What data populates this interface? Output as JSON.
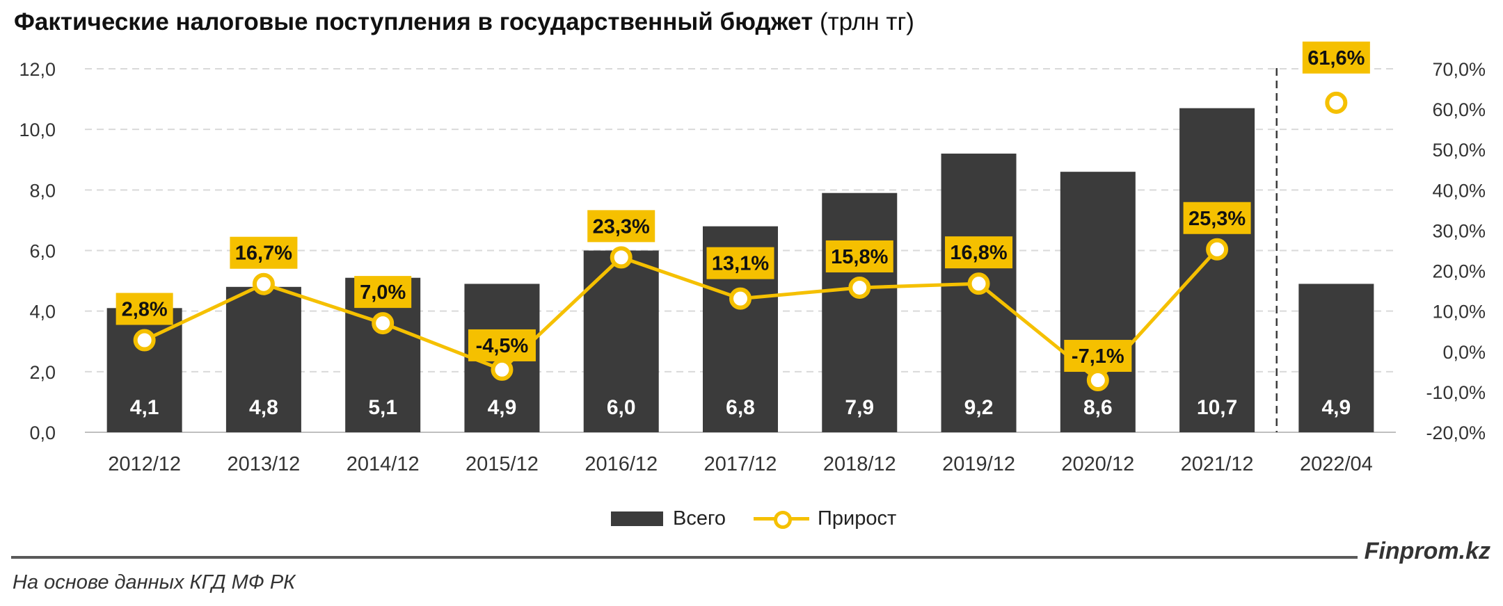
{
  "header": {
    "title_bold": "Фактические налоговые поступления в государственный бюджет",
    "title_unit": "(трлн тг)"
  },
  "legend": {
    "bars": "Всего",
    "line": "Прирост"
  },
  "footer": {
    "source": "На основе данных КГД МФ РК",
    "brand": "Finprom.kz"
  },
  "colors": {
    "bar": "#3b3b3b",
    "line": "#f5c000",
    "label_bg": "#f5c000",
    "grid": "#d9d9d9",
    "separator": "#3b3b3b"
  },
  "chart_data": {
    "type": "bar",
    "title": "Фактические налоговые поступления в государственный бюджет (трлн тг)",
    "categories": [
      "2012/12",
      "2013/12",
      "2014/12",
      "2015/12",
      "2016/12",
      "2017/12",
      "2018/12",
      "2019/12",
      "2020/12",
      "2021/12",
      "2022/04"
    ],
    "series": [
      {
        "name": "Всего",
        "type": "bar",
        "axis": "left",
        "values": [
          4.1,
          4.8,
          5.1,
          4.9,
          6.0,
          6.8,
          7.9,
          9.2,
          8.6,
          10.7,
          4.9
        ],
        "labels": [
          "4,1",
          "4,8",
          "5,1",
          "4,9",
          "6,0",
          "6,8",
          "7,9",
          "9,2",
          "8,6",
          "10,7",
          "4,9"
        ]
      },
      {
        "name": "Прирост",
        "type": "line",
        "axis": "right",
        "values": [
          2.8,
          16.7,
          7.0,
          -4.5,
          23.3,
          13.1,
          15.8,
          16.8,
          -7.1,
          25.3,
          61.6
        ],
        "labels": [
          "2,8%",
          "16,7%",
          "7,0%",
          "-4,5%",
          "23,3%",
          "13,1%",
          "15,8%",
          "16,8%",
          "-7,1%",
          "25,3%",
          "61,6%"
        ],
        "connected_points": 10
      }
    ],
    "left_axis": {
      "ylim": [
        0,
        12
      ],
      "ticks": [
        0,
        2,
        4,
        6,
        8,
        10,
        12
      ],
      "tick_labels": [
        "0,0",
        "2,0",
        "4,0",
        "6,0",
        "8,0",
        "10,0",
        "12,0"
      ]
    },
    "right_axis": {
      "ylim": [
        -20,
        70
      ],
      "ticks": [
        -20,
        -10,
        0,
        10,
        20,
        30,
        40,
        50,
        60,
        70
      ],
      "tick_labels": [
        "-20,0%",
        "-10,0%",
        "0,0%",
        "10,0%",
        "20,0%",
        "30,0%",
        "40,0%",
        "50,0%",
        "60,0%",
        "70,0%"
      ]
    },
    "separator_after_category": "2021/12",
    "grid": true,
    "legend_position": "bottom"
  }
}
